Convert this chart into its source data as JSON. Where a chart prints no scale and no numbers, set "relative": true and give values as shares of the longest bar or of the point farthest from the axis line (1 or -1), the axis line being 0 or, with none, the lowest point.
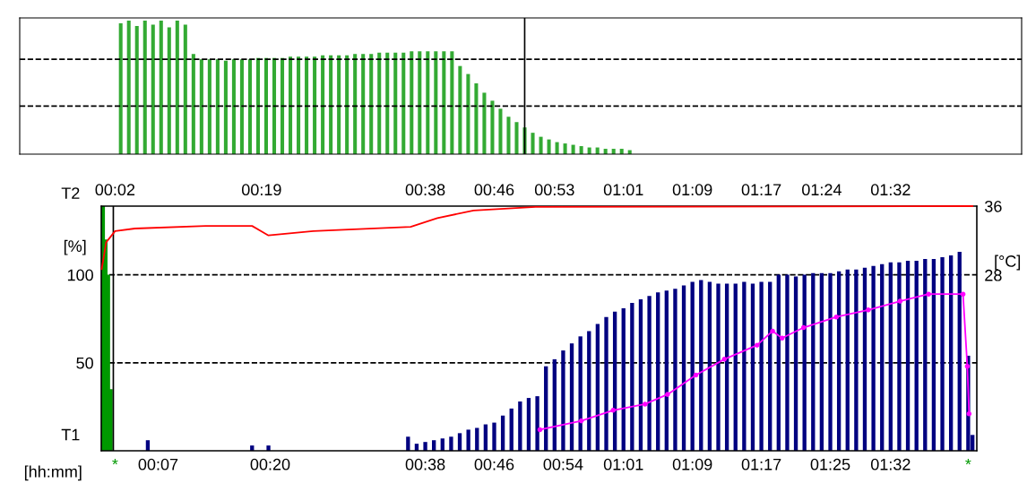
{
  "chart_data": [
    {
      "type": "bar",
      "relative": true,
      "color": "#33aa33",
      "ref_lines": [
        {
          "axis": "y",
          "value": 0.71,
          "color": "#000000",
          "line_style": "dashed"
        },
        {
          "axis": "y",
          "value": 0.36,
          "color": "#000000",
          "line_style": "dashed"
        }
      ],
      "categories": [
        null,
        null,
        null,
        null,
        null,
        null,
        null,
        null,
        null,
        null,
        null,
        null,
        null,
        null,
        null,
        null,
        null,
        null,
        null,
        null,
        null,
        null,
        null,
        null,
        null,
        null,
        null,
        null,
        null,
        null,
        null,
        null,
        null,
        null,
        null,
        null,
        null,
        null,
        null,
        null,
        null,
        null,
        null,
        null,
        null,
        null,
        null,
        null,
        null,
        null,
        null,
        null,
        null,
        null,
        null,
        null,
        null,
        null,
        null,
        null,
        null,
        null,
        null,
        null
      ],
      "values": [
        0.98,
        1.0,
        0.96,
        1.0,
        0.97,
        1.0,
        0.95,
        1.0,
        0.97,
        0.75,
        0.71,
        0.71,
        0.71,
        0.7,
        0.71,
        0.71,
        0.71,
        0.72,
        0.72,
        0.72,
        0.72,
        0.73,
        0.73,
        0.73,
        0.73,
        0.74,
        0.74,
        0.74,
        0.74,
        0.75,
        0.75,
        0.75,
        0.76,
        0.76,
        0.76,
        0.76,
        0.77,
        0.77,
        0.77,
        0.77,
        0.77,
        0.77,
        0.66,
        0.6,
        0.53,
        0.46,
        0.4,
        0.34,
        0.28,
        0.24,
        0.2,
        0.16,
        0.13,
        0.11,
        0.09,
        0.08,
        0.07,
        0.06,
        0.05,
        0.05,
        0.04,
        0.04,
        0.04,
        0.03
      ]
    },
    {
      "type": "bar",
      "xlabel": "[hh:mm]",
      "x2label": "T2",
      "ylabel": "[%]",
      "y2label": "[°C]",
      "xlim": [
        0.4,
        102
      ],
      "x2lim": [
        0.4,
        102
      ],
      "ylim": [
        0,
        139
      ],
      "y2lim": [
        7.6,
        36
      ],
      "xticks": [
        {
          "value": 7,
          "label": "00:07"
        },
        {
          "value": 20,
          "label": "00:20"
        },
        {
          "value": 38,
          "label": "00:38"
        },
        {
          "value": 46,
          "label": "00:46"
        },
        {
          "value": 54,
          "label": "00:54"
        },
        {
          "value": 61,
          "label": "01:01"
        },
        {
          "value": 69,
          "label": "01:09"
        },
        {
          "value": 77,
          "label": "01:17"
        },
        {
          "value": 85,
          "label": "01:25"
        },
        {
          "value": 92,
          "label": "01:32"
        }
      ],
      "x2ticks": [
        {
          "value": 2,
          "label": "00:02"
        },
        {
          "value": 19,
          "label": "00:19"
        },
        {
          "value": 38,
          "label": "00:38"
        },
        {
          "value": 46,
          "label": "00:46"
        },
        {
          "value": 53,
          "label": "00:53"
        },
        {
          "value": 61,
          "label": "01:01"
        },
        {
          "value": 69,
          "label": "01:09"
        },
        {
          "value": 77,
          "label": "01:17"
        },
        {
          "value": 84,
          "label": "01:24"
        },
        {
          "value": 92,
          "label": "01:32"
        }
      ],
      "yticks": [
        50,
        100
      ],
      "y2ticks": [
        28,
        36
      ],
      "grid": "y",
      "series": [
        {
          "type": "bar",
          "color": "#009900",
          "x": [
            0.6,
            0.9,
            1.2,
            1.5
          ],
          "values": [
            139,
            120,
            100,
            35
          ]
        },
        {
          "type": "bar",
          "color": "#000080",
          "x": [
            5.8,
            17.9,
            19.8,
            36,
            37,
            38,
            39,
            40,
            41,
            42,
            43,
            44,
            45,
            46,
            47,
            48,
            49,
            50,
            51,
            52,
            53,
            54,
            55,
            56,
            57,
            58,
            59,
            60,
            61,
            62,
            63,
            64,
            65,
            66,
            67,
            68,
            69,
            70,
            71,
            72,
            73,
            74,
            75,
            76,
            77,
            78,
            79,
            80,
            81,
            82,
            83,
            84,
            85,
            86,
            87,
            88,
            89,
            90,
            91,
            92,
            93,
            94,
            95,
            96,
            97,
            98,
            99,
            100,
            101,
            101.5
          ],
          "values": [
            6,
            3,
            3,
            8,
            4,
            5,
            6,
            7,
            8,
            10,
            12,
            13,
            15,
            16,
            20,
            24,
            28,
            30,
            31,
            48,
            52,
            57,
            61,
            65,
            68,
            72,
            76,
            79,
            81,
            84,
            86,
            88,
            90,
            91,
            92,
            94,
            96,
            97,
            96,
            95,
            95,
            95,
            96,
            95,
            96,
            96,
            100,
            100,
            99,
            100,
            101,
            101,
            101,
            102,
            103,
            103,
            104,
            105,
            106,
            107,
            107,
            108,
            108,
            109,
            109,
            110,
            111,
            113,
            54,
            9
          ]
        },
        {
          "type": "line",
          "axis": "y2",
          "color": "#ff0000",
          "marker": "none",
          "x": [
            0.45,
            0.97,
            2,
            4.3,
            12.5,
            17.9,
            19.8,
            25,
            36.3,
            39.4,
            43.6,
            50.8,
            101.5
          ],
          "values": [
            28.7,
            31.8,
            33.1,
            33.4,
            33.7,
            33.7,
            32.6,
            33.1,
            33.6,
            34.6,
            35.5,
            35.9,
            36
          ]
        },
        {
          "type": "line",
          "color": "#ff00ff",
          "marker": "circle",
          "x": [
            51.3,
            56.1,
            59.8,
            63.5,
            66.1,
            69.4,
            72.7,
            76.5,
            78.3,
            79.4,
            81.9,
            85.7,
            89.4,
            93.1,
            96.4,
            100.4,
            100.9,
            101.1
          ],
          "values": [
            12,
            17,
            23,
            26.5,
            32,
            43,
            52,
            60,
            68,
            64,
            70,
            76,
            80,
            85,
            89,
            89,
            48,
            21
          ]
        }
      ],
      "annotations": [
        "T1",
        {
          "text": "*",
          "x": 2,
          "y": 0
        },
        {
          "text": "*",
          "x": 101,
          "y": 0
        }
      ],
      "ref_lines": [
        {
          "axis": "x",
          "value": 1.8,
          "color": "#000000"
        }
      ]
    }
  ]
}
